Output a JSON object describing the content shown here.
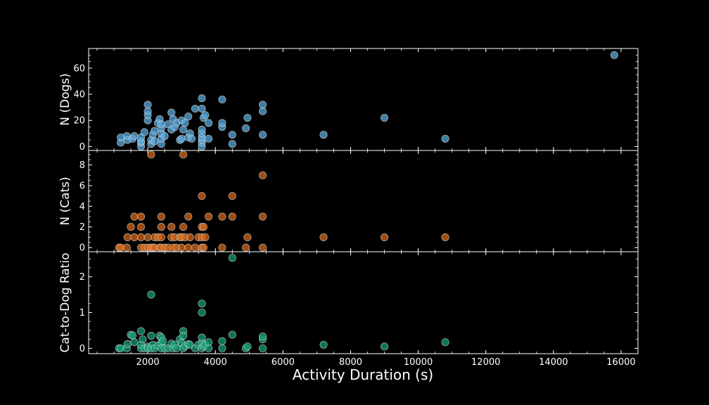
{
  "chart_data": {
    "type": "scatter",
    "xlabel": "Activity Duration (s)",
    "xlim": [
      250,
      16500
    ],
    "x_ticks": [
      "2000",
      "4000",
      "6000",
      "8000",
      "10000",
      "12000",
      "14000",
      "16000"
    ],
    "shared_x": true,
    "grid": false,
    "panels": [
      {
        "ylabel": "N (Dogs)",
        "ylim": [
          -3,
          75
        ],
        "y_ticks": [
          "0",
          "20",
          "40",
          "60"
        ],
        "color": "#5aaee6",
        "points": [
          [
            1200,
            3
          ],
          [
            1200,
            7
          ],
          [
            1380,
            8
          ],
          [
            1400,
            5
          ],
          [
            1550,
            6
          ],
          [
            1600,
            8
          ],
          [
            1800,
            0
          ],
          [
            1800,
            3
          ],
          [
            1800,
            4
          ],
          [
            1800,
            7
          ],
          [
            1900,
            11
          ],
          [
            2000,
            20
          ],
          [
            2000,
            24
          ],
          [
            2000,
            27
          ],
          [
            2000,
            32
          ],
          [
            2100,
            2
          ],
          [
            2100,
            5
          ],
          [
            2150,
            9
          ],
          [
            2200,
            4
          ],
          [
            2200,
            12
          ],
          [
            2300,
            18
          ],
          [
            2350,
            21
          ],
          [
            2400,
            2
          ],
          [
            2400,
            6
          ],
          [
            2400,
            10
          ],
          [
            2400,
            14
          ],
          [
            2400,
            17
          ],
          [
            2500,
            8
          ],
          [
            2600,
            17
          ],
          [
            2700,
            13
          ],
          [
            2700,
            26
          ],
          [
            2750,
            21
          ],
          [
            2800,
            15
          ],
          [
            2850,
            18
          ],
          [
            2950,
            5
          ],
          [
            3000,
            6
          ],
          [
            3000,
            20
          ],
          [
            3050,
            13
          ],
          [
            3100,
            18
          ],
          [
            3200,
            23
          ],
          [
            3200,
            7
          ],
          [
            3250,
            10
          ],
          [
            3300,
            6
          ],
          [
            3400,
            29
          ],
          [
            3600,
            0
          ],
          [
            3600,
            3
          ],
          [
            3600,
            5
          ],
          [
            3600,
            7
          ],
          [
            3600,
            10
          ],
          [
            3600,
            13
          ],
          [
            3600,
            29
          ],
          [
            3600,
            37
          ],
          [
            3650,
            22
          ],
          [
            3700,
            24
          ],
          [
            3800,
            18
          ],
          [
            3800,
            6
          ],
          [
            4200,
            15
          ],
          [
            4200,
            18
          ],
          [
            4200,
            36
          ],
          [
            4500,
            2
          ],
          [
            4500,
            9
          ],
          [
            4900,
            14
          ],
          [
            4950,
            22
          ],
          [
            5400,
            9
          ],
          [
            5400,
            27
          ],
          [
            5400,
            32
          ],
          [
            7200,
            9
          ],
          [
            9000,
            22
          ],
          [
            10800,
            6
          ],
          [
            15800,
            70
          ]
        ]
      },
      {
        "ylabel": "N (Cats)",
        "ylim": [
          -0.4,
          9.4
        ],
        "y_ticks": [
          "0",
          "2",
          "4",
          "6",
          "8"
        ],
        "color": "#dd6a16",
        "points": [
          [
            1150,
            0
          ],
          [
            1200,
            0
          ],
          [
            1380,
            0
          ],
          [
            1400,
            1
          ],
          [
            1500,
            2
          ],
          [
            1600,
            1
          ],
          [
            1600,
            3
          ],
          [
            1800,
            0
          ],
          [
            1800,
            1
          ],
          [
            1800,
            2
          ],
          [
            1800,
            3
          ],
          [
            1900,
            0
          ],
          [
            2000,
            0
          ],
          [
            2000,
            1
          ],
          [
            2100,
            0
          ],
          [
            2100,
            9
          ],
          [
            2150,
            0
          ],
          [
            2200,
            0
          ],
          [
            2200,
            1
          ],
          [
            2300,
            1
          ],
          [
            2350,
            0
          ],
          [
            2400,
            0
          ],
          [
            2400,
            1
          ],
          [
            2400,
            2
          ],
          [
            2400,
            3
          ],
          [
            2500,
            0
          ],
          [
            2600,
            0
          ],
          [
            2700,
            1
          ],
          [
            2700,
            2
          ],
          [
            2750,
            0
          ],
          [
            2800,
            1
          ],
          [
            2850,
            0
          ],
          [
            2950,
            1
          ],
          [
            3000,
            1
          ],
          [
            3000,
            0
          ],
          [
            3050,
            2
          ],
          [
            3050,
            9
          ],
          [
            3100,
            1
          ],
          [
            3200,
            0
          ],
          [
            3200,
            3
          ],
          [
            3250,
            1
          ],
          [
            3400,
            0
          ],
          [
            3500,
            1
          ],
          [
            3600,
            0
          ],
          [
            3600,
            1
          ],
          [
            3600,
            2
          ],
          [
            3600,
            5
          ],
          [
            3650,
            0
          ],
          [
            3650,
            2
          ],
          [
            3700,
            1
          ],
          [
            3800,
            3
          ],
          [
            4200,
            0
          ],
          [
            4200,
            3
          ],
          [
            4500,
            3
          ],
          [
            4500,
            5
          ],
          [
            4900,
            0
          ],
          [
            4950,
            1
          ],
          [
            5400,
            0
          ],
          [
            5400,
            3
          ],
          [
            5400,
            7
          ],
          [
            7200,
            1
          ],
          [
            9000,
            1
          ],
          [
            10800,
            1
          ]
        ]
      },
      {
        "ylabel": "Cat-to-Dog Ratio",
        "ylim": [
          -0.15,
          2.7
        ],
        "y_ticks": [
          "0",
          "1",
          "2"
        ],
        "color": "#12a278",
        "points": [
          [
            1150,
            0
          ],
          [
            1200,
            0
          ],
          [
            1380,
            0
          ],
          [
            1400,
            0.12
          ],
          [
            1500,
            0.38
          ],
          [
            1550,
            0.36
          ],
          [
            1600,
            0.17
          ],
          [
            1800,
            0
          ],
          [
            1800,
            0.1
          ],
          [
            1800,
            0.48
          ],
          [
            1850,
            0.25
          ],
          [
            1900,
            0
          ],
          [
            2000,
            0.05
          ],
          [
            2000,
            0
          ],
          [
            2100,
            0
          ],
          [
            2100,
            0.35
          ],
          [
            2100,
            1.5
          ],
          [
            2150,
            0.1
          ],
          [
            2200,
            0
          ],
          [
            2300,
            0.08
          ],
          [
            2350,
            0.35
          ],
          [
            2400,
            0.3
          ],
          [
            2400,
            0.14
          ],
          [
            2400,
            0
          ],
          [
            2450,
            0.2
          ],
          [
            2500,
            0
          ],
          [
            2600,
            0
          ],
          [
            2700,
            0.13
          ],
          [
            2750,
            0
          ],
          [
            2800,
            0.1
          ],
          [
            2850,
            0
          ],
          [
            2950,
            0.25
          ],
          [
            3000,
            0.15
          ],
          [
            3050,
            0.48
          ],
          [
            3050,
            0.35
          ],
          [
            3050,
            0
          ],
          [
            3100,
            0.06
          ],
          [
            3200,
            0.12
          ],
          [
            3250,
            0.1
          ],
          [
            3400,
            0
          ],
          [
            3500,
            0.1
          ],
          [
            3600,
            0
          ],
          [
            3600,
            0.15
          ],
          [
            3600,
            0.3
          ],
          [
            3600,
            1.0
          ],
          [
            3600,
            1.25
          ],
          [
            3650,
            0.05
          ],
          [
            3700,
            0.1
          ],
          [
            3800,
            0.17
          ],
          [
            3800,
            0
          ],
          [
            4200,
            0
          ],
          [
            4200,
            0.2
          ],
          [
            4500,
            0.38
          ],
          [
            4500,
            2.53
          ],
          [
            4900,
            0
          ],
          [
            4950,
            0.05
          ],
          [
            5400,
            0
          ],
          [
            5400,
            0.25
          ],
          [
            5400,
            0.33
          ],
          [
            7200,
            0.1
          ],
          [
            9000,
            0.05
          ],
          [
            10800,
            0.17
          ]
        ]
      }
    ]
  }
}
